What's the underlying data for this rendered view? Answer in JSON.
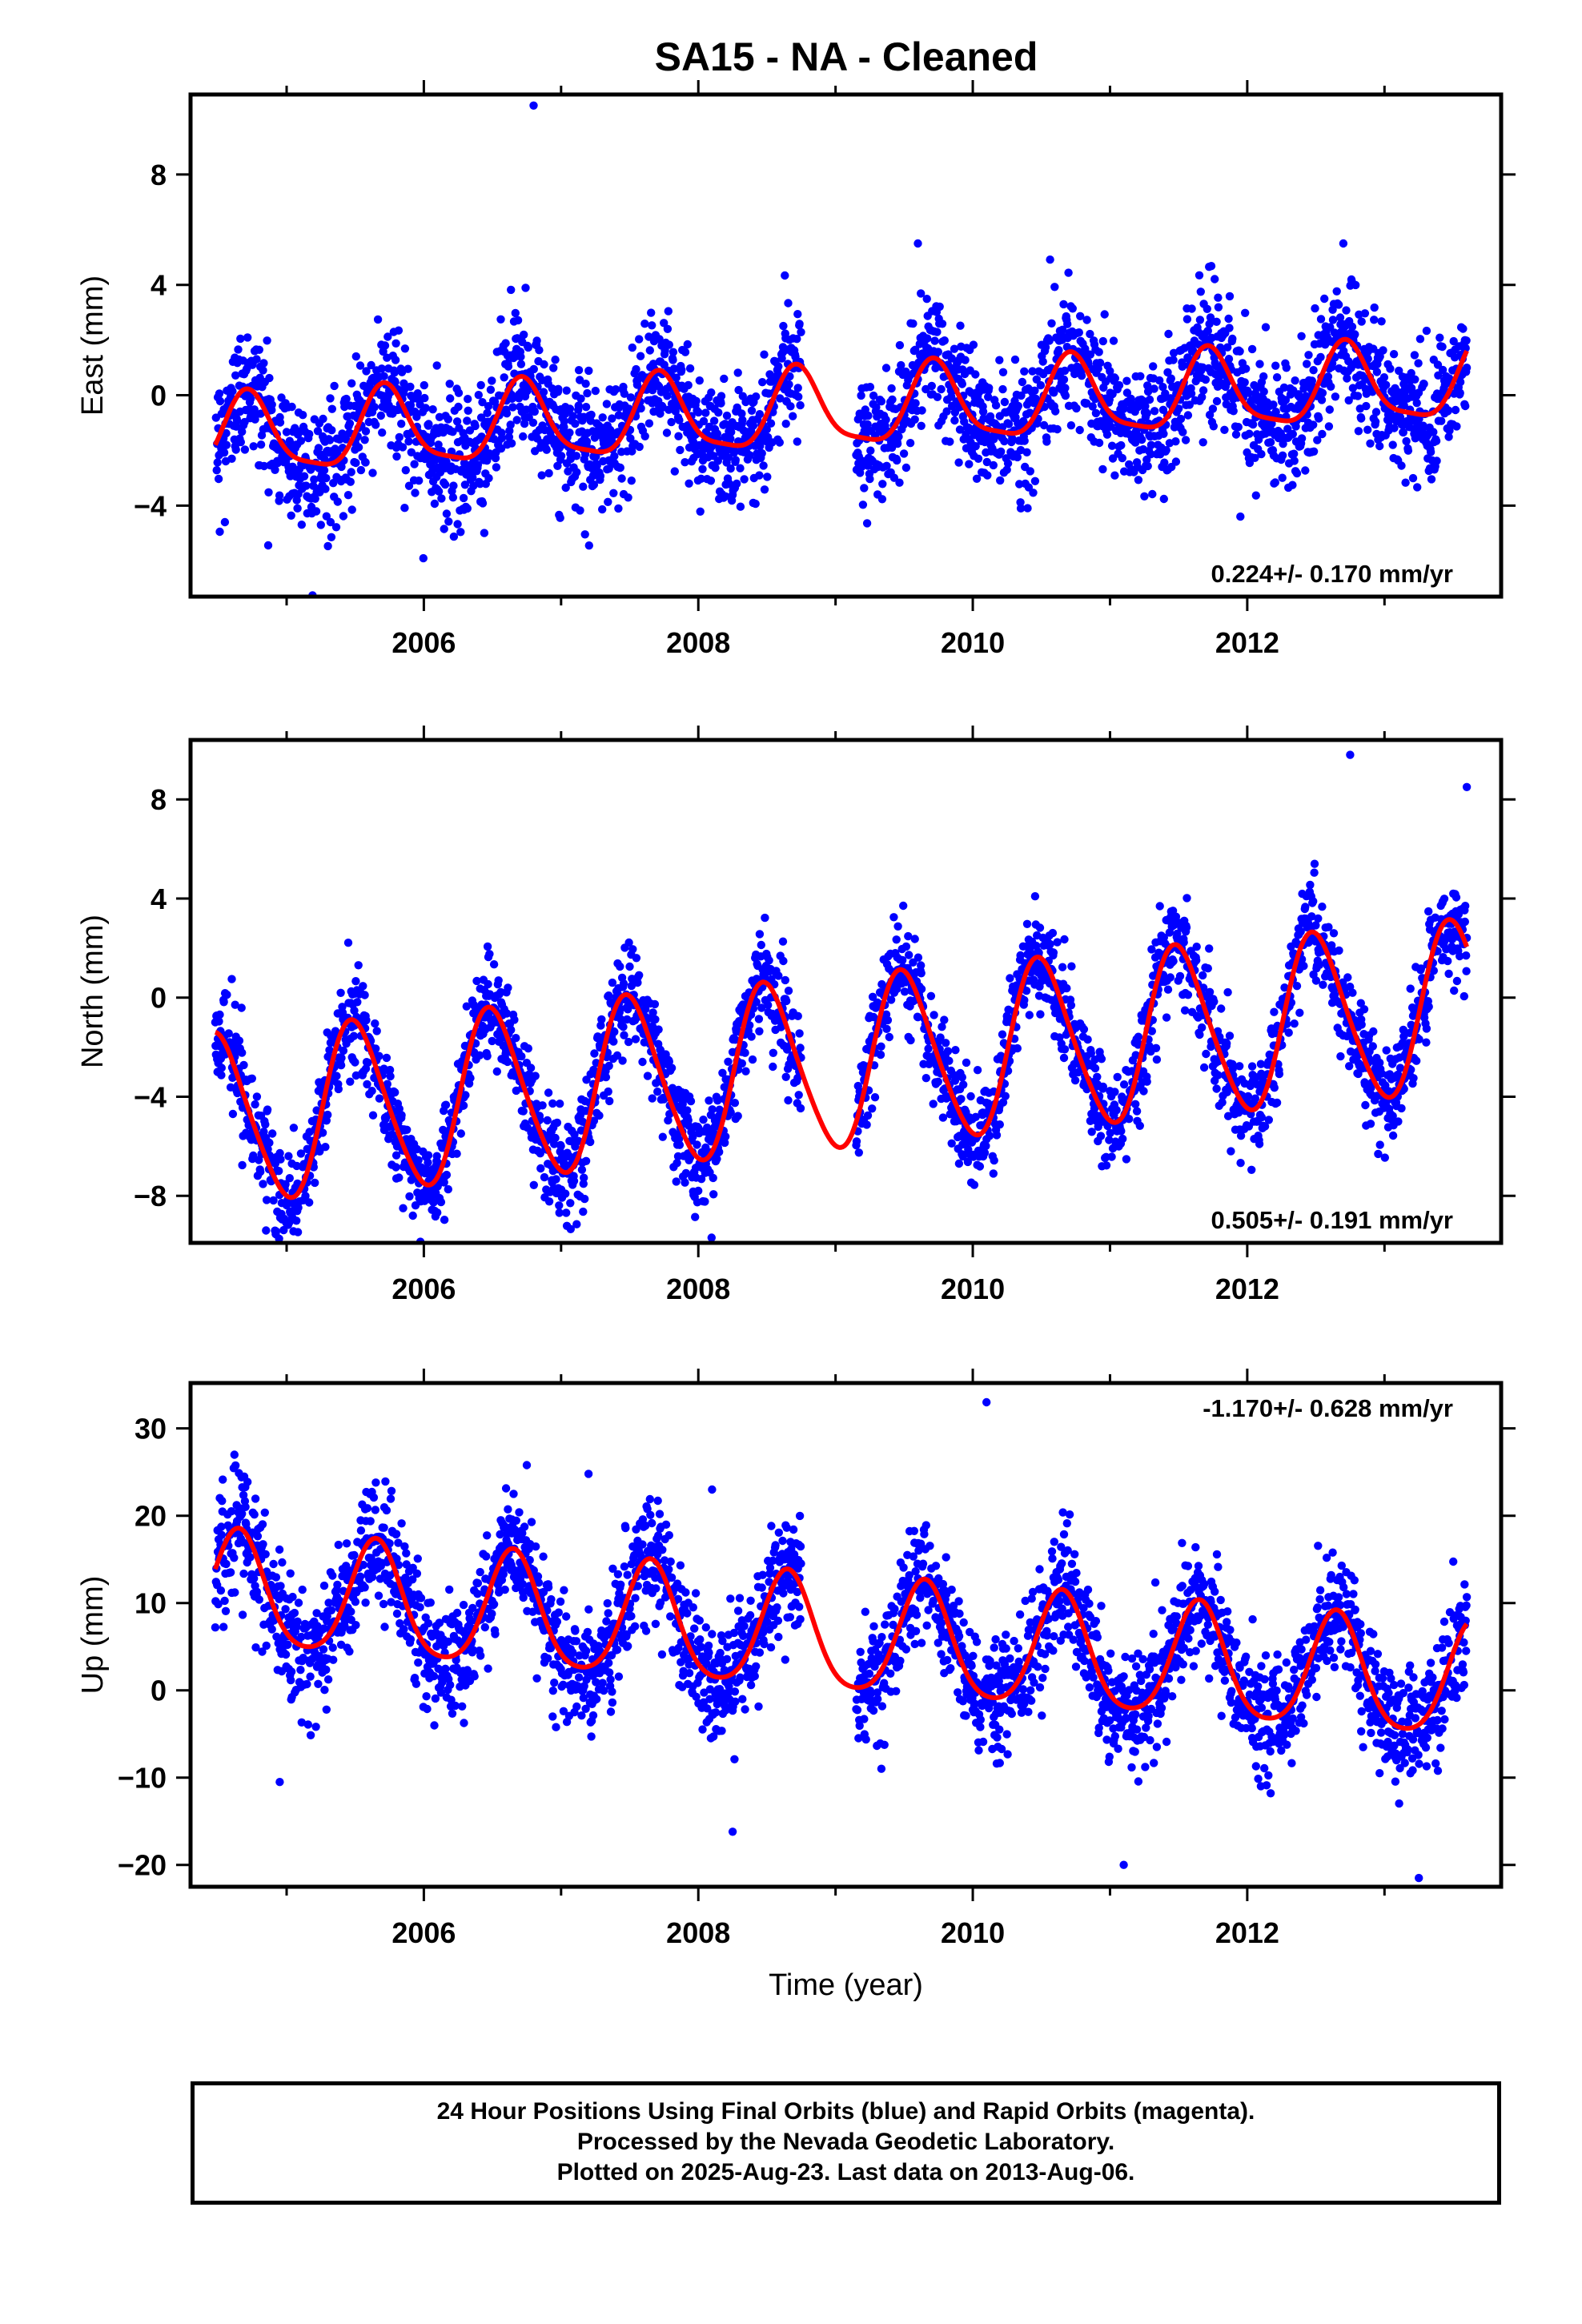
{
  "title": "SA15  - NA - Cleaned",
  "colors": {
    "points": "#0000ff",
    "fit": "#ff0000",
    "frame": "#000000"
  },
  "chart_data": [
    {
      "type": "scatter",
      "title": "SA15  - NA - Cleaned",
      "xlabel": "",
      "ylabel": "East (mm)",
      "xlim": [
        2004.3,
        2013.85
      ],
      "ylim": [
        -7.3,
        10.9
      ],
      "xticks": [
        "2006",
        "2008",
        "2010",
        "2012"
      ],
      "yticks": [
        "−4",
        "0",
        "4",
        "8"
      ],
      "ytick_values": [
        -4,
        0,
        4,
        8
      ],
      "rate_text": "0.224+/- 0.170 mm/yr",
      "rate_position": "bottom-right",
      "model": {
        "offset": -0.55,
        "trend": 0.224,
        "annual_amp": 1.4,
        "annual_peak": 0.72,
        "semiannual_amp": 0.35,
        "semiannual_peak": 0.2,
        "noise_sd": 1.15,
        "start": 2004.48,
        "end": 2013.6
      },
      "outliers": [
        [
          2006.8,
          10.5
        ],
        [
          2009.6,
          5.5
        ],
        [
          2012.7,
          5.5
        ],
        [
          2005.25,
          -4.7
        ],
        [
          2004.55,
          -4.6
        ],
        [
          2011.95,
          -4.4
        ],
        [
          2008.4,
          -3.9
        ],
        [
          2010.35,
          -4.1
        ]
      ],
      "fit_label": "fitted seasonal model (red)"
    },
    {
      "type": "scatter",
      "xlabel": "",
      "ylabel": "North (mm)",
      "xlim": [
        2004.3,
        2013.85
      ],
      "ylim": [
        -9.9,
        10.4
      ],
      "xticks": [
        "2006",
        "2008",
        "2010",
        "2012"
      ],
      "yticks": [
        "−8",
        "−4",
        "0",
        "4",
        "8"
      ],
      "ytick_values": [
        -8,
        -4,
        0,
        4,
        8
      ],
      "rate_text": "0.505+/- 0.191 mm/yr",
      "rate_position": "bottom-right",
      "model": {
        "offset": -2.7,
        "trend": 0.505,
        "annual_amp": 3.4,
        "annual_peak": 0.5,
        "semiannual_amp": 0.4,
        "semiannual_peak": 0.4,
        "noise_sd": 1.0,
        "start": 2004.48,
        "end": 2013.6
      },
      "outliers": [
        [
          2012.75,
          9.8
        ],
        [
          2013.6,
          8.5
        ],
        [
          2004.85,
          -9.4
        ],
        [
          2005.8,
          -7.3
        ],
        [
          2008.0,
          -7.8
        ],
        [
          2009.9,
          -6.7
        ],
        [
          2010.15,
          -7.1
        ],
        [
          2013.1,
          -5.0
        ]
      ]
    },
    {
      "type": "scatter",
      "xlabel": "Time (year)",
      "ylabel": "Up (mm)",
      "xlim": [
        2004.3,
        2013.85
      ],
      "ylim": [
        -22.5,
        35.2
      ],
      "xticks": [
        "2006",
        "2008",
        "2010",
        "2012"
      ],
      "yticks": [
        "−20",
        "−10",
        "0",
        "10",
        "20",
        "30"
      ],
      "ytick_values": [
        -20,
        -10,
        0,
        10,
        20,
        30
      ],
      "rate_text": "-1.170+/- 0.628 mm/yr",
      "rate_position": "top-right",
      "model": {
        "offset": 6.0,
        "trend": -1.17,
        "annual_amp": 6.5,
        "annual_peak": 0.65,
        "semiannual_amp": 1.0,
        "semiannual_peak": 0.15,
        "noise_sd": 3.3,
        "start": 2004.48,
        "end": 2013.6
      },
      "outliers": [
        [
          2010.1,
          33.0
        ],
        [
          2006.75,
          25.8
        ],
        [
          2007.2,
          24.8
        ],
        [
          2005.65,
          23.8
        ],
        [
          2008.1,
          23.0
        ],
        [
          2004.7,
          21.0
        ],
        [
          2008.25,
          -16.2
        ],
        [
          2013.25,
          -21.5
        ],
        [
          2004.95,
          -10.5
        ],
        [
          2011.1,
          -20.0
        ]
      ]
    }
  ],
  "caption": {
    "line1": "24 Hour Positions Using Final Orbits (blue) and Rapid Orbits (magenta).",
    "line2": "Processed by the Nevada Geodetic Laboratory.",
    "line3": "Plotted on 2025-Aug-23. Last data on 2013-Aug-06."
  }
}
